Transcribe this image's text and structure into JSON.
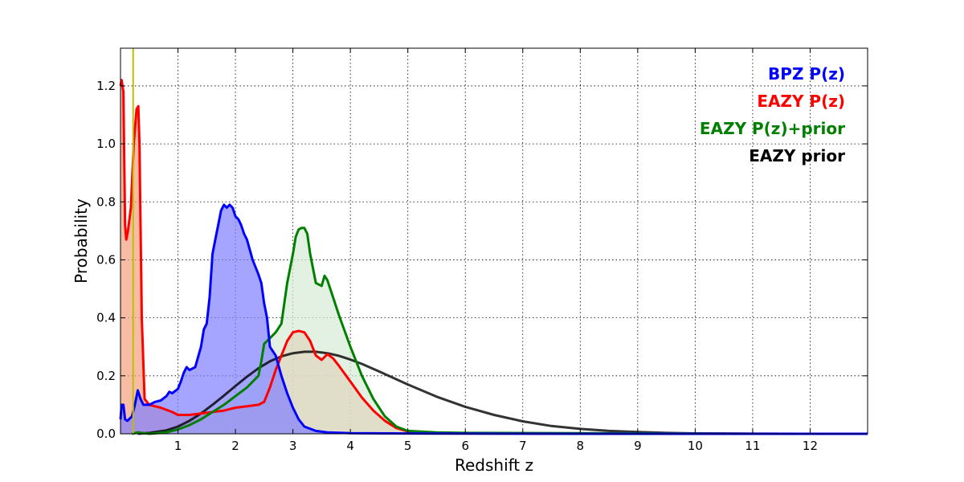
{
  "chart_data": {
    "type": "area",
    "xlabel": "Redshift z",
    "ylabel": "Probability",
    "xlim": [
      0,
      13
    ],
    "ylim": [
      0,
      1.33
    ],
    "grid": true,
    "legend_position": "top-right",
    "x_ticks": [
      1,
      2,
      3,
      4,
      5,
      6,
      7,
      8,
      9,
      10,
      11,
      12
    ],
    "y_ticks": [
      0.0,
      0.2,
      0.4,
      0.6,
      0.8,
      1.0,
      1.2
    ],
    "x_tick_labels": [
      "1",
      "2",
      "3",
      "4",
      "5",
      "6",
      "7",
      "8",
      "9",
      "10",
      "11",
      "12"
    ],
    "y_tick_labels": [
      "0.0",
      "0.2",
      "0.4",
      "0.6",
      "0.8",
      "1.0",
      "1.2"
    ],
    "vertical_line": {
      "x": 0.22,
      "color": "#bfbf00"
    },
    "series": [
      {
        "name": "EAZY prior",
        "color": "#000000",
        "fill": false,
        "points": [
          [
            0.3,
            0.0
          ],
          [
            0.5,
            0.003
          ],
          [
            0.8,
            0.012
          ],
          [
            1.0,
            0.025
          ],
          [
            1.2,
            0.045
          ],
          [
            1.4,
            0.07
          ],
          [
            1.6,
            0.1
          ],
          [
            1.8,
            0.132
          ],
          [
            2.0,
            0.165
          ],
          [
            2.2,
            0.197
          ],
          [
            2.4,
            0.226
          ],
          [
            2.6,
            0.25
          ],
          [
            2.8,
            0.267
          ],
          [
            3.0,
            0.278
          ],
          [
            3.2,
            0.283
          ],
          [
            3.4,
            0.283
          ],
          [
            3.6,
            0.278
          ],
          [
            3.8,
            0.269
          ],
          [
            4.0,
            0.256
          ],
          [
            4.2,
            0.241
          ],
          [
            4.5,
            0.215
          ],
          [
            5.0,
            0.17
          ],
          [
            5.5,
            0.128
          ],
          [
            6.0,
            0.093
          ],
          [
            6.5,
            0.065
          ],
          [
            7.0,
            0.043
          ],
          [
            7.5,
            0.027
          ],
          [
            8.0,
            0.017
          ],
          [
            8.5,
            0.01
          ],
          [
            9.0,
            0.006
          ],
          [
            9.5,
            0.003
          ],
          [
            10.0,
            0.0015
          ],
          [
            11.0,
            0.0
          ],
          [
            12.0,
            0.0
          ]
        ]
      },
      {
        "name": "EAZY P(z)",
        "color": "#ff0000",
        "fill": true,
        "fill_color": "#f2a07e",
        "points": [
          [
            0.0,
            1.2
          ],
          [
            0.02,
            1.22
          ],
          [
            0.05,
            1.18
          ],
          [
            0.08,
            0.72
          ],
          [
            0.1,
            0.67
          ],
          [
            0.13,
            0.7
          ],
          [
            0.18,
            0.78
          ],
          [
            0.23,
            1.0
          ],
          [
            0.28,
            1.12
          ],
          [
            0.31,
            1.13
          ],
          [
            0.33,
            1.0
          ],
          [
            0.37,
            0.4
          ],
          [
            0.42,
            0.12
          ],
          [
            0.5,
            0.1
          ],
          [
            0.7,
            0.09
          ],
          [
            0.9,
            0.075
          ],
          [
            1.0,
            0.065
          ],
          [
            1.2,
            0.065
          ],
          [
            1.4,
            0.07
          ],
          [
            1.6,
            0.075
          ],
          [
            1.8,
            0.08
          ],
          [
            2.0,
            0.09
          ],
          [
            2.2,
            0.095
          ],
          [
            2.4,
            0.1
          ],
          [
            2.5,
            0.11
          ],
          [
            2.6,
            0.16
          ],
          [
            2.7,
            0.22
          ],
          [
            2.8,
            0.27
          ],
          [
            2.9,
            0.32
          ],
          [
            3.0,
            0.35
          ],
          [
            3.1,
            0.355
          ],
          [
            3.2,
            0.35
          ],
          [
            3.3,
            0.32
          ],
          [
            3.4,
            0.27
          ],
          [
            3.5,
            0.255
          ],
          [
            3.6,
            0.275
          ],
          [
            3.7,
            0.26
          ],
          [
            3.8,
            0.235
          ],
          [
            4.0,
            0.18
          ],
          [
            4.2,
            0.125
          ],
          [
            4.4,
            0.08
          ],
          [
            4.6,
            0.045
          ],
          [
            4.8,
            0.02
          ],
          [
            5.0,
            0.008
          ],
          [
            5.5,
            0.003
          ],
          [
            6.0,
            0.002
          ],
          [
            8.0,
            0.001
          ],
          [
            11.8,
            0.0
          ]
        ]
      },
      {
        "name": "EAZY P(z)+prior",
        "color": "#007f00",
        "fill": true,
        "fill_color": "#d7ebd7",
        "points": [
          [
            0.2,
            0.0
          ],
          [
            0.3,
            0.005
          ],
          [
            0.5,
            0.0
          ],
          [
            0.8,
            0.005
          ],
          [
            1.0,
            0.015
          ],
          [
            1.2,
            0.03
          ],
          [
            1.4,
            0.05
          ],
          [
            1.6,
            0.075
          ],
          [
            1.8,
            0.1
          ],
          [
            2.0,
            0.13
          ],
          [
            2.2,
            0.16
          ],
          [
            2.4,
            0.2
          ],
          [
            2.45,
            0.25
          ],
          [
            2.5,
            0.31
          ],
          [
            2.6,
            0.33
          ],
          [
            2.7,
            0.35
          ],
          [
            2.8,
            0.38
          ],
          [
            2.9,
            0.52
          ],
          [
            3.0,
            0.62
          ],
          [
            3.05,
            0.68
          ],
          [
            3.1,
            0.705
          ],
          [
            3.15,
            0.71
          ],
          [
            3.2,
            0.71
          ],
          [
            3.25,
            0.69
          ],
          [
            3.3,
            0.62
          ],
          [
            3.4,
            0.52
          ],
          [
            3.5,
            0.51
          ],
          [
            3.55,
            0.545
          ],
          [
            3.6,
            0.53
          ],
          [
            3.7,
            0.47
          ],
          [
            3.8,
            0.41
          ],
          [
            4.0,
            0.3
          ],
          [
            4.2,
            0.2
          ],
          [
            4.4,
            0.12
          ],
          [
            4.6,
            0.06
          ],
          [
            4.8,
            0.025
          ],
          [
            5.0,
            0.01
          ],
          [
            5.5,
            0.005
          ],
          [
            6.0,
            0.003
          ],
          [
            8.0,
            0.002
          ],
          [
            11.8,
            0.0
          ]
        ]
      },
      {
        "name": "BPZ P(z)",
        "color": "#0000ff",
        "fill": true,
        "fill_color": "#7f7fff",
        "points": [
          [
            0.0,
            0.05
          ],
          [
            0.02,
            0.1
          ],
          [
            0.05,
            0.1
          ],
          [
            0.08,
            0.05
          ],
          [
            0.12,
            0.045
          ],
          [
            0.2,
            0.06
          ],
          [
            0.25,
            0.1
          ],
          [
            0.3,
            0.15
          ],
          [
            0.35,
            0.12
          ],
          [
            0.4,
            0.1
          ],
          [
            0.5,
            0.1
          ],
          [
            0.6,
            0.11
          ],
          [
            0.7,
            0.115
          ],
          [
            0.8,
            0.13
          ],
          [
            0.85,
            0.145
          ],
          [
            0.9,
            0.14
          ],
          [
            1.0,
            0.155
          ],
          [
            1.05,
            0.18
          ],
          [
            1.1,
            0.21
          ],
          [
            1.15,
            0.23
          ],
          [
            1.2,
            0.22
          ],
          [
            1.3,
            0.23
          ],
          [
            1.4,
            0.3
          ],
          [
            1.45,
            0.36
          ],
          [
            1.5,
            0.38
          ],
          [
            1.55,
            0.47
          ],
          [
            1.6,
            0.62
          ],
          [
            1.65,
            0.67
          ],
          [
            1.7,
            0.72
          ],
          [
            1.75,
            0.77
          ],
          [
            1.8,
            0.79
          ],
          [
            1.85,
            0.78
          ],
          [
            1.9,
            0.79
          ],
          [
            1.95,
            0.78
          ],
          [
            2.0,
            0.75
          ],
          [
            2.05,
            0.74
          ],
          [
            2.1,
            0.72
          ],
          [
            2.15,
            0.69
          ],
          [
            2.2,
            0.67
          ],
          [
            2.3,
            0.6
          ],
          [
            2.4,
            0.55
          ],
          [
            2.45,
            0.52
          ],
          [
            2.5,
            0.45
          ],
          [
            2.55,
            0.4
          ],
          [
            2.6,
            0.3
          ],
          [
            2.7,
            0.27
          ],
          [
            2.8,
            0.2
          ],
          [
            2.9,
            0.14
          ],
          [
            3.0,
            0.09
          ],
          [
            3.1,
            0.05
          ],
          [
            3.2,
            0.025
          ],
          [
            3.4,
            0.01
          ],
          [
            3.6,
            0.005
          ],
          [
            4.0,
            0.002
          ],
          [
            5.0,
            0.001
          ],
          [
            8.0,
            0.0
          ],
          [
            13.0,
            0.0
          ]
        ]
      }
    ],
    "legend": [
      {
        "label": "BPZ P(z)",
        "color": "#0000ff"
      },
      {
        "label": "EAZY P(z)",
        "color": "#ff0000"
      },
      {
        "label": "EAZY P(z)+prior",
        "color": "#007f00"
      },
      {
        "label": "EAZY prior",
        "color": "#000000"
      }
    ]
  }
}
